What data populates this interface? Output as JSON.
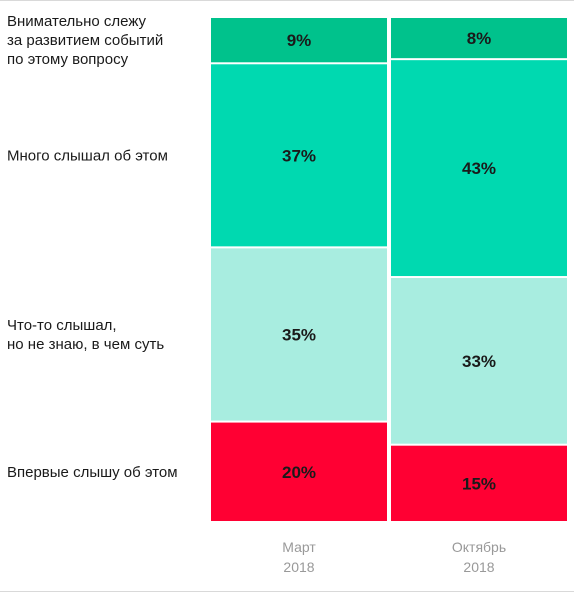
{
  "chart_data": {
    "type": "bar",
    "stacked": true,
    "categories": [
      "Март\n2018",
      "Октябрь\n2018"
    ],
    "series": [
      {
        "name": "Внимательно слежу\nза развитием событий\nпо этому вопросу",
        "values": [
          9,
          8
        ],
        "color": "#00c28c"
      },
      {
        "name": "Много слышал об этом",
        "values": [
          37,
          43
        ],
        "color": "#00d9b0"
      },
      {
        "name": "Что-то слышал,\nно не знаю, в чем суть",
        "values": [
          35,
          33
        ],
        "color": "#a8ede0"
      },
      {
        "name": "Впервые слышу об этом",
        "values": [
          20,
          15
        ],
        "color": "#ff0033"
      }
    ],
    "value_suffix": "%",
    "legend": "left"
  }
}
